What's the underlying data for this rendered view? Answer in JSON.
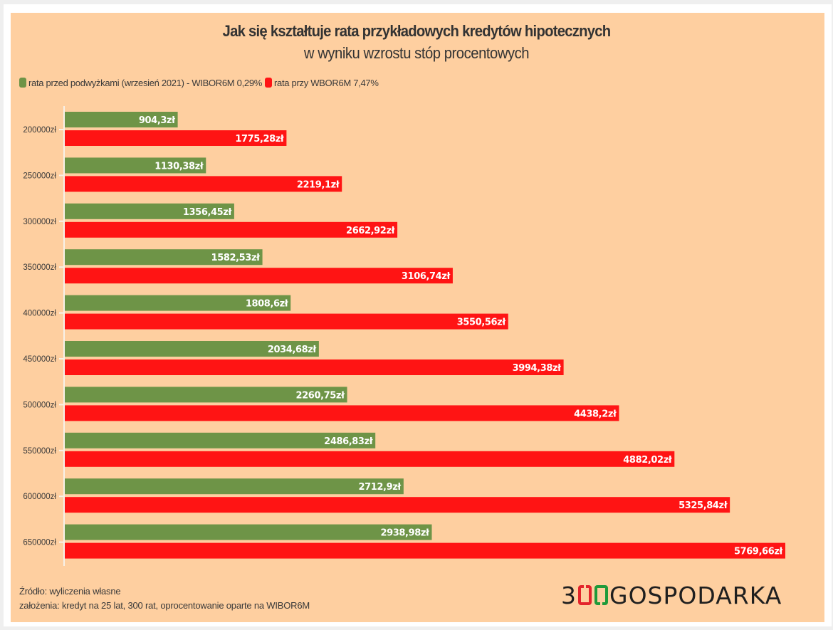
{
  "chart_data": {
    "type": "bar",
    "orientation": "horizontal",
    "title": "Jak się kształtuje rata przykładowych kredytów hipotecznych",
    "subtitle": "w wyniku wzrostu stóp procentowych",
    "xlabel": "",
    "ylabel": "",
    "grid": false,
    "legend_position": "top-left",
    "categories": [
      "200000zł",
      "250000zł",
      "300000zł",
      "350000zł",
      "400000zł",
      "450000zł",
      "500000zł",
      "550000zł",
      "600000zł",
      "650000zł"
    ],
    "series": [
      {
        "name": "rata przed podwyżkami (wrzesień 2021) - WIBOR6M 0,29%",
        "color": "#6e9447",
        "values": [
          904.3,
          1130.38,
          1356.45,
          1582.53,
          1808.6,
          2034.68,
          2260.75,
          2486.83,
          2712.9,
          2938.98
        ],
        "labels": [
          "904,3zł",
          "1130,38zł",
          "1356,45zł",
          "1582,53zł",
          "1808,6zł",
          "2034,68zł",
          "2260,75zł",
          "2486,83zł",
          "2712,9zł",
          "2938,98zł"
        ]
      },
      {
        "name": "rata przy WBOR6M 7,47%",
        "color": "#ff1414",
        "values": [
          1775.28,
          2219.1,
          2662.92,
          3106.74,
          3550.56,
          3994.38,
          4438.2,
          4882.02,
          5325.84,
          5769.66
        ],
        "labels": [
          "1775,28zł",
          "2219,1zł",
          "2662,92zł",
          "3106,74zł",
          "3550,56zł",
          "3994,38zł",
          "4438,2zł",
          "4882,02zł",
          "5325,84zł",
          "5769,66zł"
        ]
      }
    ],
    "xlim": [
      0,
      5769.66
    ]
  },
  "legend": {
    "items": [
      {
        "label": "rata przed podwyżkami (wrzesień 2021) - WIBOR6M 0,29%",
        "color": "#6e9447"
      },
      {
        "label": "rata przy WBOR6M 7,47%",
        "color": "#ff1414"
      }
    ]
  },
  "footer": {
    "source": "Źródło: wyliczenia własne",
    "assumptions": "założenia: kredyt na 25 lat, 300 rat, oprocentowanie oparte na WIBOR6M"
  },
  "logo": {
    "prefix": "3",
    "suffix": "GOSPODARKA",
    "zero_colors": [
      "#e3242b",
      "#1f9a3a"
    ]
  },
  "colors": {
    "background": "#fecfa0",
    "axis": "#f7f1e8",
    "text": "#333333"
  }
}
